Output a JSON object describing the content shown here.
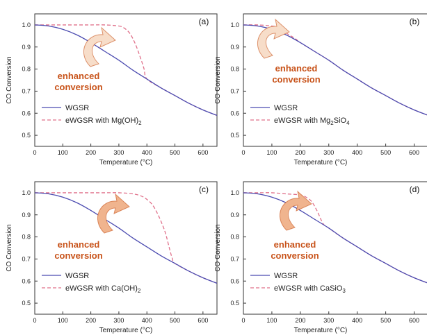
{
  "chart_data": [
    {
      "type": "line",
      "panel_label": "(a)",
      "xlabel": "Temperature (°C)",
      "ylabel": "CO Conversion",
      "xlim": [
        0,
        650
      ],
      "ylim": [
        0.45,
        1.05
      ],
      "xticks": [
        0,
        100,
        200,
        300,
        400,
        500,
        600
      ],
      "yticks": [
        0.5,
        0.6,
        0.7,
        0.8,
        0.9,
        1.0
      ],
      "annotation_lines": [
        "enhanced",
        "conversion"
      ],
      "legend": {
        "location": "lower-left",
        "entries": [
          {
            "text": "WGSR"
          },
          {
            "text": "eWGSR with Mg(OH)",
            "subscript": "2"
          }
        ]
      },
      "series": [
        {
          "name": "WGSR",
          "x": [
            0,
            50,
            100,
            150,
            200,
            250,
            300,
            350,
            400,
            450,
            500,
            550,
            600,
            650
          ],
          "y": [
            1.0,
            0.995,
            0.98,
            0.955,
            0.92,
            0.88,
            0.84,
            0.795,
            0.755,
            0.715,
            0.68,
            0.645,
            0.615,
            0.59
          ]
        },
        {
          "name": "eWGSR with Mg(OH)2",
          "x": [
            0,
            50,
            100,
            150,
            200,
            250,
            300,
            320,
            340,
            360,
            380,
            390,
            400,
            450,
            500,
            550,
            600,
            650
          ],
          "y": [
            1.0,
            1.0,
            1.0,
            1.0,
            1.0,
            1.0,
            0.995,
            0.985,
            0.96,
            0.91,
            0.84,
            0.8,
            0.755,
            0.715,
            0.68,
            0.645,
            0.615,
            0.59
          ]
        }
      ]
    },
    {
      "type": "line",
      "panel_label": "(b)",
      "xlabel": "Temperature (°C)",
      "ylabel": "CO Conversion",
      "xlim": [
        0,
        650
      ],
      "ylim": [
        0.45,
        1.05
      ],
      "xticks": [
        0,
        100,
        200,
        300,
        400,
        500,
        600
      ],
      "yticks": [
        0.5,
        0.6,
        0.7,
        0.8,
        0.9,
        1.0
      ],
      "annotation_lines": [
        "enhanced",
        "conversion"
      ],
      "legend": {
        "location": "lower-left",
        "entries": [
          {
            "text": "WGSR"
          },
          {
            "text": "eWGSR with Mg",
            "subscript": "2",
            "suffix": "SiO",
            "suffix_subscript": "4"
          }
        ]
      },
      "series": [
        {
          "name": "WGSR",
          "x": [
            0,
            50,
            100,
            150,
            200,
            250,
            300,
            350,
            400,
            450,
            500,
            550,
            600,
            650
          ],
          "y": [
            1.0,
            0.995,
            0.98,
            0.955,
            0.92,
            0.88,
            0.84,
            0.795,
            0.755,
            0.715,
            0.68,
            0.645,
            0.615,
            0.59
          ]
        },
        {
          "name": "eWGSR with Mg2SiO4",
          "x": [
            0,
            50,
            100,
            120,
            140,
            160,
            180,
            200,
            250,
            300,
            350,
            400,
            450,
            500,
            550,
            600,
            650
          ],
          "y": [
            1.0,
            1.0,
            0.995,
            0.99,
            0.975,
            0.955,
            0.94,
            0.92,
            0.88,
            0.84,
            0.795,
            0.755,
            0.715,
            0.68,
            0.645,
            0.615,
            0.59
          ]
        }
      ]
    },
    {
      "type": "line",
      "panel_label": "(c)",
      "xlabel": "Temperature (°C)",
      "ylabel": "CO Conversion",
      "xlim": [
        0,
        650
      ],
      "ylim": [
        0.45,
        1.05
      ],
      "xticks": [
        0,
        100,
        200,
        300,
        400,
        500,
        600
      ],
      "yticks": [
        0.5,
        0.6,
        0.7,
        0.8,
        0.9,
        1.0
      ],
      "annotation_lines": [
        "enhanced",
        "conversion"
      ],
      "legend": {
        "location": "lower-left",
        "entries": [
          {
            "text": "WGSR"
          },
          {
            "text": "eWGSR with Ca(OH)",
            "subscript": "2"
          }
        ]
      },
      "series": [
        {
          "name": "WGSR",
          "x": [
            0,
            50,
            100,
            150,
            200,
            250,
            300,
            350,
            400,
            450,
            500,
            550,
            600,
            650
          ],
          "y": [
            1.0,
            0.995,
            0.98,
            0.955,
            0.92,
            0.88,
            0.84,
            0.795,
            0.755,
            0.715,
            0.68,
            0.645,
            0.615,
            0.59
          ]
        },
        {
          "name": "eWGSR with Ca(OH)2",
          "x": [
            0,
            50,
            100,
            150,
            200,
            250,
            300,
            350,
            380,
            400,
            420,
            440,
            460,
            470,
            480,
            490,
            500,
            550,
            600,
            650
          ],
          "y": [
            1.0,
            1.0,
            1.0,
            1.0,
            1.0,
            1.0,
            1.0,
            0.995,
            0.985,
            0.97,
            0.945,
            0.9,
            0.84,
            0.8,
            0.75,
            0.705,
            0.68,
            0.645,
            0.615,
            0.59
          ]
        }
      ]
    },
    {
      "type": "line",
      "panel_label": "(d)",
      "xlabel": "Temperature (°C)",
      "ylabel": "CO Conversion",
      "xlim": [
        0,
        650
      ],
      "ylim": [
        0.45,
        1.05
      ],
      "xticks": [
        0,
        100,
        200,
        300,
        400,
        500,
        600
      ],
      "yticks": [
        0.5,
        0.6,
        0.7,
        0.8,
        0.9,
        1.0
      ],
      "annotation_lines": [
        "enhanced",
        "conversion"
      ],
      "legend": {
        "location": "lower-left",
        "entries": [
          {
            "text": "WGSR"
          },
          {
            "text": "eWGSR with CaSiO",
            "subscript": "3"
          }
        ]
      },
      "series": [
        {
          "name": "WGSR",
          "x": [
            0,
            50,
            100,
            150,
            200,
            250,
            300,
            350,
            400,
            450,
            500,
            550,
            600,
            650
          ],
          "y": [
            1.0,
            0.995,
            0.98,
            0.955,
            0.92,
            0.88,
            0.84,
            0.795,
            0.755,
            0.715,
            0.68,
            0.645,
            0.615,
            0.59
          ]
        },
        {
          "name": "eWGSR with CaSiO3",
          "x": [
            0,
            50,
            100,
            150,
            200,
            220,
            240,
            260,
            280,
            300,
            350,
            400,
            450,
            500,
            550,
            600,
            650
          ],
          "y": [
            1.0,
            1.0,
            1.0,
            0.995,
            0.99,
            0.98,
            0.96,
            0.915,
            0.86,
            0.84,
            0.795,
            0.755,
            0.715,
            0.68,
            0.645,
            0.615,
            0.59
          ]
        }
      ]
    }
  ],
  "colors": {
    "wgsr": "#4b4bb0",
    "ewgsr": "#e0708a",
    "annotation": "#c8531a",
    "arrow_fill_light": "#f7ddc9",
    "arrow_fill_dark": "#f0b48e"
  }
}
